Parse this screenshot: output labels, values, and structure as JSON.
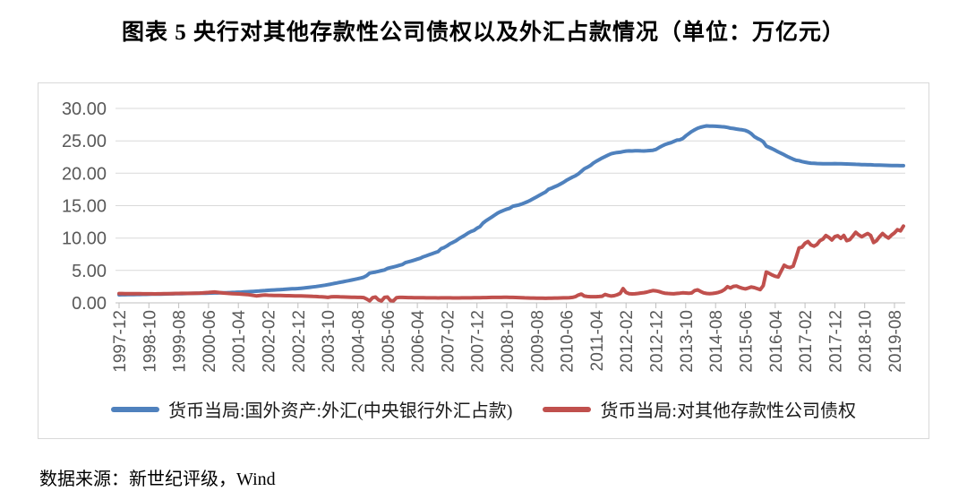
{
  "title": "图表 5  央行对其他存款性公司债权以及外汇占款情况（单位：万亿元）",
  "source": "数据来源：新世纪评级，Wind",
  "colors": {
    "series_fx": "#4F81BD",
    "series_claims": "#C0504D",
    "gridline": "#D9D9D9",
    "axis_line": "#BFBFBF",
    "tick_label": "#595959",
    "frame_border": "#D9D9D9"
  },
  "chart_data": {
    "type": "line",
    "title": "央行对其他存款性公司债权以及外汇占款情况",
    "unit": "万亿元",
    "x_start": "1997-12",
    "x_frequency": "monthly",
    "x_tick_every": 10,
    "x_tick_labels": [
      "1997-12",
      "1998-10",
      "1999-08",
      "2000-06",
      "2001-04",
      "2002-02",
      "2002-12",
      "2003-10",
      "2004-08",
      "2005-06",
      "2006-04",
      "2007-02",
      "2007-12",
      "2008-10",
      "2009-08",
      "2010-06",
      "2011-04",
      "2012-02",
      "2012-12",
      "2013-10",
      "2014-08",
      "2015-06",
      "2016-04",
      "2017-02",
      "2017-12",
      "2018-10",
      "2019-08"
    ],
    "ylim": [
      0,
      30
    ],
    "y_tick_values": [
      0,
      5,
      10,
      15,
      20,
      25,
      30
    ],
    "y_tick_labels": [
      "0.00",
      "5.00",
      "10.00",
      "15.00",
      "20.00",
      "25.00",
      "30.00"
    ],
    "grid": true,
    "legend_position": "bottom",
    "series": [
      {
        "name": "货币当局:国外资产:外汇(中央银行外汇占款)",
        "color": "#4F81BD",
        "values": [
          1.25,
          1.26,
          1.26,
          1.27,
          1.28,
          1.29,
          1.3,
          1.3,
          1.31,
          1.32,
          1.33,
          1.34,
          1.35,
          1.36,
          1.36,
          1.37,
          1.38,
          1.39,
          1.4,
          1.41,
          1.42,
          1.43,
          1.44,
          1.45,
          1.46,
          1.47,
          1.48,
          1.49,
          1.5,
          1.5,
          1.51,
          1.52,
          1.53,
          1.54,
          1.55,
          1.55,
          1.56,
          1.58,
          1.6,
          1.62,
          1.64,
          1.66,
          1.68,
          1.71,
          1.74,
          1.77,
          1.8,
          1.83,
          1.87,
          1.9,
          1.93,
          1.96,
          1.99,
          2.02,
          2.05,
          2.08,
          2.11,
          2.14,
          2.17,
          2.19,
          2.21,
          2.25,
          2.3,
          2.35,
          2.4,
          2.46,
          2.52,
          2.58,
          2.65,
          2.72,
          2.8,
          2.89,
          2.98,
          3.07,
          3.16,
          3.25,
          3.34,
          3.43,
          3.52,
          3.62,
          3.72,
          3.83,
          3.95,
          4.2,
          4.59,
          4.67,
          4.76,
          4.87,
          4.98,
          5.08,
          5.31,
          5.43,
          5.54,
          5.66,
          5.79,
          5.92,
          6.21,
          6.33,
          6.46,
          6.6,
          6.74,
          6.89,
          7.1,
          7.26,
          7.42,
          7.59,
          7.75,
          7.92,
          8.36,
          8.55,
          8.8,
          9.12,
          9.35,
          9.59,
          9.92,
          10.18,
          10.45,
          10.77,
          11.0,
          11.18,
          11.52,
          11.75,
          12.3,
          12.67,
          12.95,
          13.25,
          13.56,
          13.87,
          14.09,
          14.28,
          14.46,
          14.6,
          14.91,
          15.0,
          15.1,
          15.25,
          15.43,
          15.62,
          15.85,
          16.1,
          16.35,
          16.6,
          16.86,
          17.12,
          17.52,
          17.7,
          17.9,
          18.1,
          18.34,
          18.6,
          18.9,
          19.15,
          19.4,
          19.6,
          19.9,
          20.3,
          20.68,
          20.92,
          21.18,
          21.55,
          21.85,
          22.1,
          22.35,
          22.58,
          22.8,
          23.0,
          23.12,
          23.2,
          23.24,
          23.34,
          23.42,
          23.45,
          23.44,
          23.46,
          23.48,
          23.45,
          23.44,
          23.46,
          23.5,
          23.55,
          23.67,
          23.95,
          24.2,
          24.42,
          24.58,
          24.7,
          24.9,
          25.1,
          25.15,
          25.35,
          25.75,
          26.1,
          26.43,
          26.7,
          26.95,
          27.1,
          27.21,
          27.3,
          27.28,
          27.26,
          27.25,
          27.22,
          27.18,
          27.15,
          27.07,
          26.96,
          26.9,
          26.82,
          26.75,
          26.7,
          26.6,
          26.41,
          26.1,
          25.64,
          25.38,
          25.16,
          24.86,
          24.2,
          23.98,
          23.78,
          23.55,
          23.3,
          23.08,
          22.85,
          22.6,
          22.38,
          22.18,
          22.0,
          21.94,
          21.8,
          21.7,
          21.62,
          21.55,
          21.52,
          21.5,
          21.48,
          21.46,
          21.45,
          21.45,
          21.47,
          21.48,
          21.46,
          21.45,
          21.44,
          21.43,
          21.42,
          21.4,
          21.38,
          21.36,
          21.33,
          21.32,
          21.31,
          21.3,
          21.28,
          21.26,
          21.25,
          21.24,
          21.22,
          21.21,
          21.2,
          21.19,
          21.18,
          21.17,
          21.16
        ]
      },
      {
        "name": "货币当局:对其他存款性公司债权",
        "color": "#C0504D",
        "values": [
          1.44,
          1.44,
          1.43,
          1.43,
          1.42,
          1.42,
          1.41,
          1.41,
          1.4,
          1.4,
          1.39,
          1.39,
          1.38,
          1.39,
          1.4,
          1.41,
          1.42,
          1.43,
          1.44,
          1.45,
          1.45,
          1.46,
          1.46,
          1.47,
          1.47,
          1.48,
          1.49,
          1.51,
          1.54,
          1.57,
          1.61,
          1.65,
          1.67,
          1.63,
          1.57,
          1.52,
          1.48,
          1.45,
          1.42,
          1.4,
          1.38,
          1.35,
          1.32,
          1.28,
          1.22,
          1.15,
          1.08,
          1.12,
          1.18,
          1.2,
          1.18,
          1.16,
          1.15,
          1.14,
          1.13,
          1.12,
          1.11,
          1.1,
          1.09,
          1.08,
          1.07,
          1.06,
          1.05,
          1.04,
          1.02,
          1.0,
          0.98,
          0.96,
          0.94,
          0.9,
          0.85,
          0.92,
          0.96,
          0.95,
          0.93,
          0.91,
          0.9,
          0.88,
          0.87,
          0.86,
          0.85,
          0.84,
          0.82,
          0.6,
          0.32,
          0.8,
          0.9,
          0.45,
          0.3,
          0.85,
          0.9,
          0.35,
          0.3,
          0.8,
          0.85,
          0.84,
          0.83,
          0.82,
          0.81,
          0.8,
          0.8,
          0.79,
          0.79,
          0.78,
          0.78,
          0.77,
          0.77,
          0.76,
          0.78,
          0.78,
          0.77,
          0.77,
          0.76,
          0.76,
          0.76,
          0.77,
          0.77,
          0.78,
          0.78,
          0.79,
          0.79,
          0.8,
          0.81,
          0.82,
          0.83,
          0.84,
          0.84,
          0.85,
          0.85,
          0.86,
          0.86,
          0.85,
          0.84,
          0.83,
          0.82,
          0.8,
          0.78,
          0.76,
          0.75,
          0.74,
          0.73,
          0.72,
          0.72,
          0.71,
          0.72,
          0.73,
          0.74,
          0.75,
          0.76,
          0.77,
          0.78,
          0.8,
          0.85,
          0.95,
          1.2,
          1.35,
          1.05,
          0.98,
          0.96,
          0.95,
          0.96,
          0.98,
          1.02,
          1.3,
          1.15,
          1.05,
          1.1,
          1.25,
          1.45,
          2.2,
          1.6,
          1.42,
          1.38,
          1.4,
          1.45,
          1.52,
          1.58,
          1.66,
          1.78,
          1.9,
          1.85,
          1.75,
          1.6,
          1.5,
          1.45,
          1.42,
          1.4,
          1.45,
          1.5,
          1.55,
          1.52,
          1.48,
          1.53,
          1.9,
          2.0,
          1.75,
          1.55,
          1.45,
          1.42,
          1.45,
          1.52,
          1.62,
          1.78,
          2.05,
          2.5,
          2.3,
          2.55,
          2.6,
          2.4,
          2.25,
          2.15,
          2.3,
          2.45,
          2.35,
          2.2,
          2.05,
          2.66,
          4.75,
          4.55,
          4.3,
          4.1,
          4.0,
          4.9,
          5.8,
          5.55,
          5.45,
          5.65,
          7.0,
          8.47,
          8.6,
          9.2,
          9.45,
          8.95,
          8.75,
          9.0,
          9.6,
          9.85,
          10.4,
          10.1,
          9.7,
          10.22,
          10.35,
          9.95,
          10.4,
          9.6,
          9.75,
          10.3,
          10.9,
          10.5,
          10.2,
          10.45,
          10.7,
          10.4,
          9.3,
          9.6,
          10.2,
          10.7,
          10.3,
          10.0,
          10.45,
          10.8,
          11.3,
          11.1,
          11.85
        ]
      }
    ]
  }
}
